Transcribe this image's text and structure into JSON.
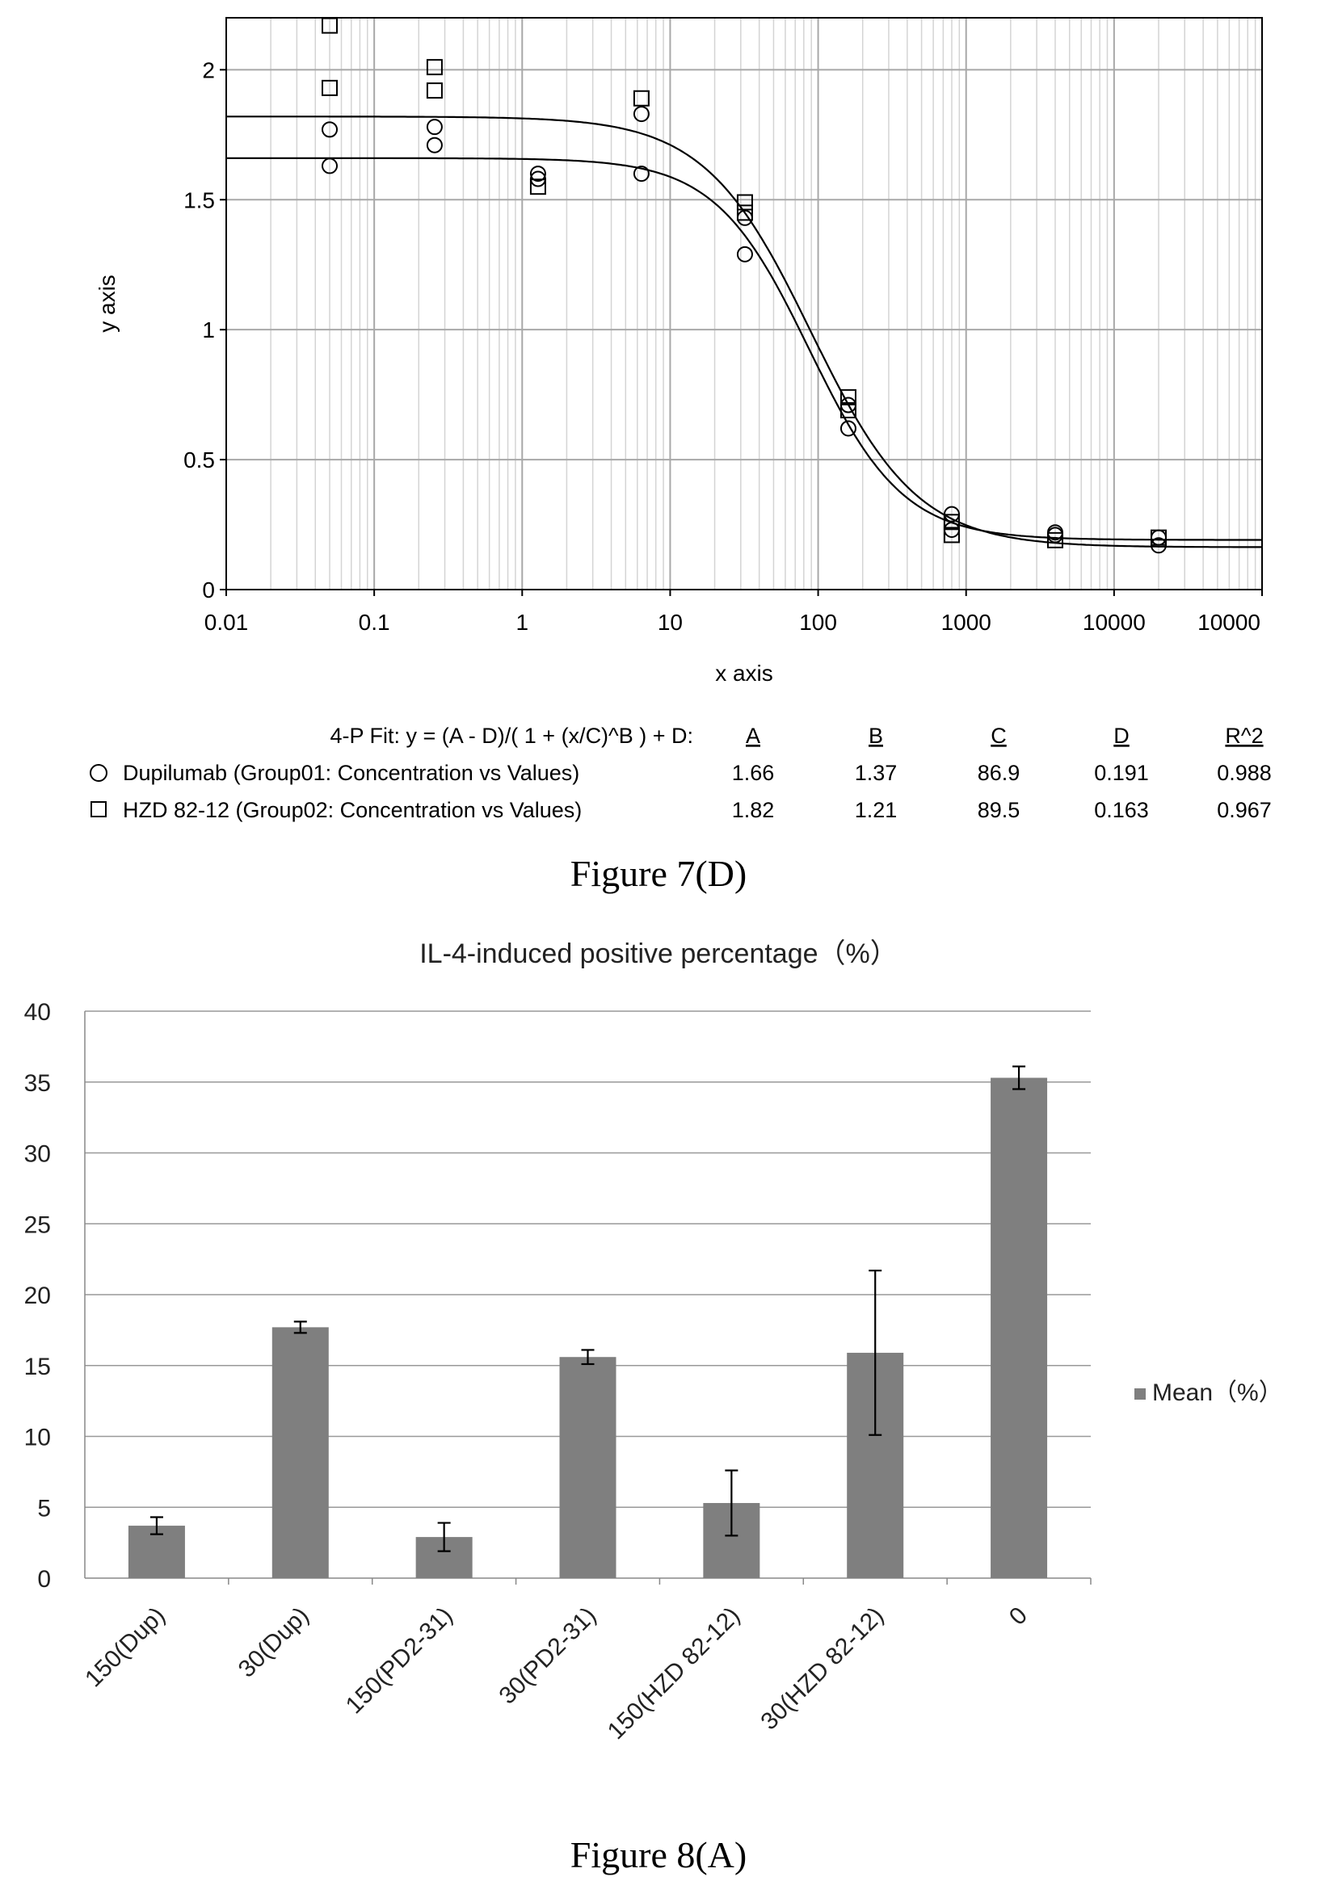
{
  "chart_data": [
    {
      "type": "scatter",
      "title": "",
      "xlabel": "x axis",
      "ylabel": "y axis",
      "x_scale": "log",
      "xlim": [
        0.01,
        100000
      ],
      "ylim": [
        0,
        2.2
      ],
      "x_ticks": [
        "0.01",
        "0.1",
        "1",
        "10",
        "100",
        "1000",
        "10000",
        "10000"
      ],
      "y_ticks": [
        "0",
        "0.5",
        "1",
        "1.5",
        "2"
      ],
      "grid": true,
      "fit_header": {
        "formula": "4-P Fit: y = (A - D)/( 1 + (x/C)^B ) + D:",
        "columns": [
          "A",
          "B",
          "C",
          "D",
          "R^2"
        ]
      },
      "series": [
        {
          "name": "Dupilumab (Group01: Concentration vs Values)",
          "marker": "circle",
          "fit": {
            "A": "1.66",
            "B": "1.37",
            "C": "86.9",
            "D": "0.191",
            "R2": "0.988"
          },
          "points": [
            [
              0.05,
              1.77
            ],
            [
              0.05,
              1.63
            ],
            [
              0.256,
              1.78
            ],
            [
              0.256,
              1.71
            ],
            [
              1.28,
              1.6
            ],
            [
              1.28,
              1.58
            ],
            [
              6.4,
              1.83
            ],
            [
              6.4,
              1.6
            ],
            [
              32,
              1.43
            ],
            [
              32,
              1.29
            ],
            [
              160,
              0.71
            ],
            [
              160,
              0.62
            ],
            [
              800,
              0.29
            ],
            [
              800,
              0.23
            ],
            [
              4000,
              0.22
            ],
            [
              4000,
              0.21
            ],
            [
              20000,
              0.2
            ],
            [
              20000,
              0.17
            ]
          ]
        },
        {
          "name": "HZD 82-12 (Group02: Concentration vs Values)",
          "marker": "square",
          "fit": {
            "A": "1.82",
            "B": "1.21",
            "C": "89.5",
            "D": "0.163",
            "R2": "0.967"
          },
          "points": [
            [
              0.05,
              2.17
            ],
            [
              0.05,
              1.93
            ],
            [
              0.256,
              2.01
            ],
            [
              0.256,
              1.92
            ],
            [
              1.28,
              1.55
            ],
            [
              6.4,
              1.89
            ],
            [
              32,
              1.49
            ],
            [
              32,
              1.45
            ],
            [
              160,
              0.74
            ],
            [
              160,
              0.69
            ],
            [
              800,
              0.26
            ],
            [
              800,
              0.21
            ],
            [
              4000,
              0.19
            ],
            [
              20000,
              0.2
            ]
          ]
        }
      ]
    },
    {
      "type": "bar",
      "title": "IL-4-induced positive percentage（%）",
      "xlabel": "",
      "ylabel": "",
      "ylim": [
        0,
        40
      ],
      "y_ticks": [
        "0",
        "5",
        "10",
        "15",
        "20",
        "25",
        "30",
        "35",
        "40"
      ],
      "grid": true,
      "legend_position": "right",
      "categories": [
        "150(Dup)",
        "30(Dup)",
        "150(PD2-31)",
        "30(PD2-31)",
        "150(HZD 82-12)",
        "30(HZD 82-12)",
        "0"
      ],
      "series": [
        {
          "name": "Mean（%）",
          "color": "#7f7f7f",
          "values": [
            3.7,
            17.7,
            2.9,
            15.6,
            5.3,
            15.9,
            35.3
          ],
          "error": [
            0.6,
            0.4,
            1.0,
            0.5,
            2.3,
            5.8,
            0.8
          ]
        }
      ]
    }
  ],
  "captions": {
    "figure_7d": "Figure 7(D)",
    "figure_8a": "Figure 8(A)"
  }
}
